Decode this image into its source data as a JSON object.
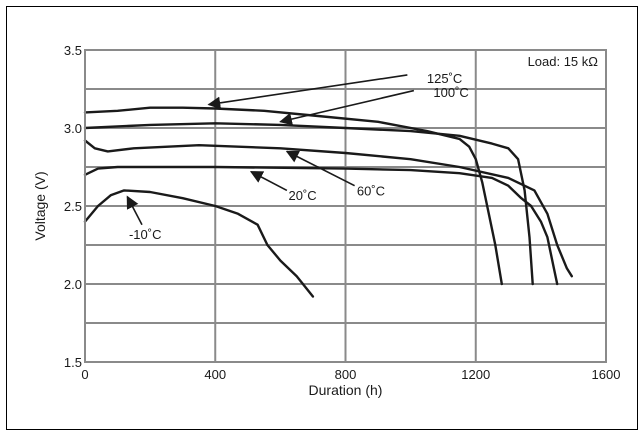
{
  "chart_data": {
    "type": "line",
    "xlabel": "Duration (h)",
    "ylabel": "Voltage (V)",
    "xlim": [
      0,
      1600
    ],
    "ylim": [
      1.5,
      3.5
    ],
    "x_ticks": [
      0,
      400,
      800,
      1200,
      1600
    ],
    "x_tick_labels": [
      "0",
      "400",
      "800",
      "1200",
      "1600"
    ],
    "y_ticks": [
      1.5,
      2.0,
      2.5,
      3.0,
      3.5
    ],
    "y_tick_labels": [
      "1.5",
      "2.0",
      "2.5",
      "3.0",
      "3.5"
    ],
    "grid": true,
    "grid_x": [
      400,
      800,
      1200
    ],
    "grid_y": [
      1.75,
      2.0,
      2.25,
      2.5,
      2.75,
      3.0,
      3.25
    ],
    "legend_box": {
      "text": "Load: 15 kΩ",
      "placement": "top-right"
    },
    "series": [
      {
        "name": "125˚C",
        "points": [
          [
            0,
            3.1
          ],
          [
            100,
            3.11
          ],
          [
            200,
            3.13
          ],
          [
            300,
            3.13
          ],
          [
            400,
            3.125
          ],
          [
            550,
            3.11
          ],
          [
            700,
            3.08
          ],
          [
            900,
            3.04
          ],
          [
            1050,
            2.98
          ],
          [
            1150,
            2.93
          ],
          [
            1180,
            2.88
          ],
          [
            1200,
            2.8
          ],
          [
            1220,
            2.65
          ],
          [
            1240,
            2.45
          ],
          [
            1260,
            2.25
          ],
          [
            1280,
            2.0
          ]
        ],
        "label_text": "125˚C",
        "label_value": [
          1050,
          3.32
        ],
        "arrow_from": [
          990,
          3.34
        ],
        "arrow_to": [
          380,
          3.15
        ]
      },
      {
        "name": "100˚C",
        "points": [
          [
            0,
            3.0
          ],
          [
            200,
            3.02
          ],
          [
            400,
            3.03
          ],
          [
            600,
            3.02
          ],
          [
            800,
            3.0
          ],
          [
            1000,
            2.98
          ],
          [
            1150,
            2.95
          ],
          [
            1250,
            2.9
          ],
          [
            1300,
            2.87
          ],
          [
            1330,
            2.8
          ],
          [
            1350,
            2.6
          ],
          [
            1365,
            2.3
          ],
          [
            1375,
            2.0
          ]
        ],
        "label_text": "100˚C",
        "label_value": [
          1070,
          3.23
        ],
        "arrow_from": [
          1010,
          3.24
        ],
        "arrow_to": [
          600,
          3.04
        ]
      },
      {
        "name": "60˚C",
        "points": [
          [
            0,
            2.92
          ],
          [
            30,
            2.87
          ],
          [
            70,
            2.85
          ],
          [
            150,
            2.87
          ],
          [
            350,
            2.89
          ],
          [
            600,
            2.87
          ],
          [
            800,
            2.84
          ],
          [
            1000,
            2.8
          ],
          [
            1150,
            2.75
          ],
          [
            1300,
            2.68
          ],
          [
            1380,
            2.6
          ],
          [
            1420,
            2.45
          ],
          [
            1450,
            2.25
          ],
          [
            1480,
            2.1
          ],
          [
            1495,
            2.05
          ]
        ],
        "label_text": "60˚C",
        "label_value": [
          835,
          2.6
        ],
        "arrow_from": [
          828,
          2.63
        ],
        "arrow_to": [
          620,
          2.85
        ]
      },
      {
        "name": "20˚C",
        "points": [
          [
            0,
            2.7
          ],
          [
            40,
            2.74
          ],
          [
            100,
            2.75
          ],
          [
            400,
            2.75
          ],
          [
            800,
            2.74
          ],
          [
            1000,
            2.73
          ],
          [
            1150,
            2.71
          ],
          [
            1250,
            2.68
          ],
          [
            1300,
            2.63
          ],
          [
            1340,
            2.55
          ],
          [
            1370,
            2.5
          ],
          [
            1400,
            2.4
          ],
          [
            1420,
            2.3
          ],
          [
            1440,
            2.1
          ],
          [
            1450,
            2.0
          ]
        ],
        "label_text": "20˚C",
        "label_value": [
          625,
          2.57
        ],
        "arrow_from": [
          620,
          2.6
        ],
        "arrow_to": [
          510,
          2.72
        ]
      },
      {
        "name": "-10˚C",
        "points": [
          [
            0,
            2.4
          ],
          [
            40,
            2.5
          ],
          [
            80,
            2.57
          ],
          [
            120,
            2.6
          ],
          [
            200,
            2.59
          ],
          [
            300,
            2.55
          ],
          [
            400,
            2.5
          ],
          [
            470,
            2.45
          ],
          [
            530,
            2.38
          ],
          [
            560,
            2.25
          ],
          [
            600,
            2.15
          ],
          [
            650,
            2.05
          ],
          [
            700,
            1.92
          ]
        ],
        "label_text": "-10˚C",
        "label_value": [
          135,
          2.32
        ],
        "arrow_from": [
          175,
          2.38
        ],
        "arrow_to": [
          130,
          2.56
        ]
      }
    ]
  }
}
